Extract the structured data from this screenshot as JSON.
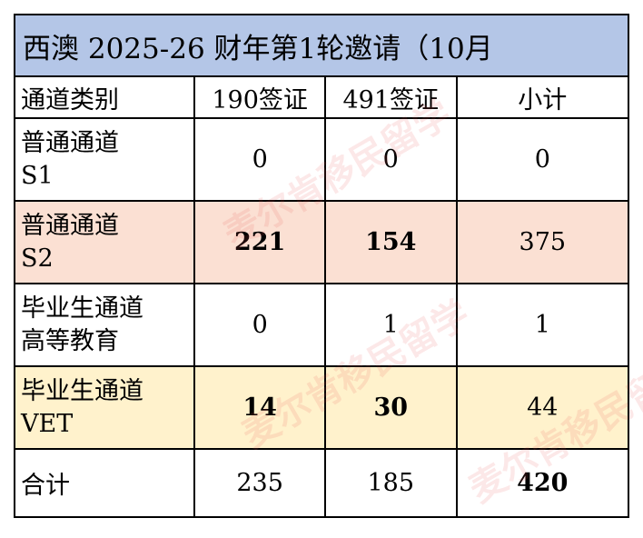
{
  "title": "西澳 2025-26 财年第1轮邀请（10月",
  "headers": [
    "通道类别",
    "190签证",
    "491签证",
    "小计"
  ],
  "rows": [
    {
      "name": [
        "普通通道",
        "S1"
      ],
      "v190": "0",
      "v491": "0",
      "total": "0",
      "bg": "#ffffff"
    },
    {
      "name": [
        "普通通道",
        "S2"
      ],
      "v190": "221",
      "v491": "154",
      "total": "375",
      "bg": "#fbe0d3"
    },
    {
      "name": [
        "毕业生通道",
        "高等教育"
      ],
      "v190": "0",
      "v491": "1",
      "total": "1",
      "bg": "#ffffff"
    },
    {
      "name": [
        "毕业生通道",
        "VET"
      ],
      "v190": "14",
      "v491": "30",
      "total": "44",
      "bg": "#fff2cc"
    }
  ],
  "total_row": {
    "label": "合计",
    "v190": "235",
    "v491": "185",
    "total": "420"
  },
  "watermark": "麦尔肯移民留学",
  "colors": {
    "title_bg": "#b4c6e7",
    "s2_bg": "#fbe0d3",
    "vet_bg": "#fff2cc"
  }
}
